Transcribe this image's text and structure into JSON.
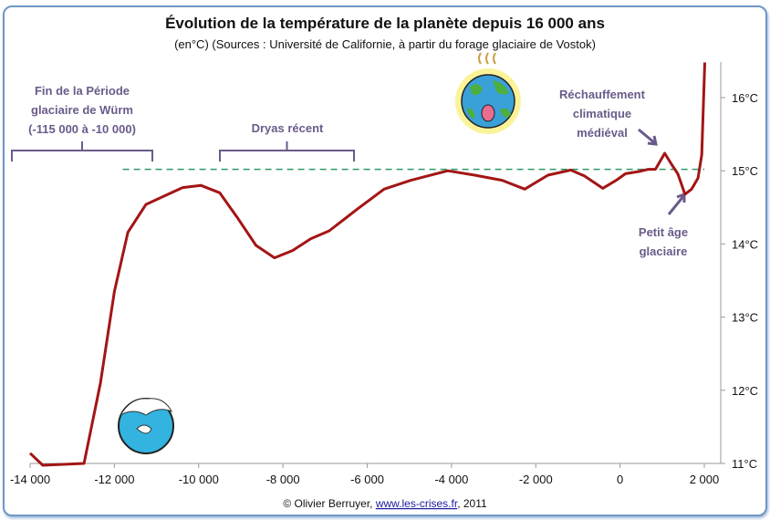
{
  "chart_data": {
    "type": "line",
    "title": "Évolution de la température de la planète depuis 16 000 ans",
    "subtitle": "(en°C) (Sources : Université de Californie, à partir du forage glaciaire de Vostok)",
    "xlabel": "",
    "ylabel": "",
    "xlim": [
      -14000,
      2000
    ],
    "ylim": [
      11,
      16.5
    ],
    "x_ticks": [
      -14000,
      -12000,
      -10000,
      -8000,
      -6000,
      -4000,
      -2000,
      0,
      2000
    ],
    "x_tick_labels": [
      "-14 000",
      "-12 000",
      "-10 000",
      "-8 000",
      "-6 000",
      "-4 000",
      "-2 000",
      "0",
      "2 000"
    ],
    "y_ticks": [
      11,
      12,
      13,
      14,
      15,
      16
    ],
    "y_tick_labels": [
      "11°C",
      "12°C",
      "13°C",
      "14°C",
      "15°C",
      "16°C"
    ],
    "y_axis_side": "right",
    "grid": false,
    "series": [
      {
        "color": "#a31515",
        "x": [
          -14000,
          -13700,
          -12720,
          -12330,
          -12000,
          -11680,
          -11250,
          -10800,
          -10380,
          -9950,
          -9500,
          -9070,
          -8640,
          -8200,
          -7770,
          -7340,
          -6900,
          -6250,
          -5600,
          -4960,
          -4090,
          -3450,
          -2800,
          -2260,
          -1710,
          -1170,
          -850,
          -410,
          -90,
          130,
          450,
          670,
          840,
          1060,
          1220,
          1370,
          1540,
          1700,
          1850,
          1940,
          2011
        ],
        "y": [
          11.14,
          10.95,
          11.0,
          12.1,
          13.35,
          14.16,
          14.54,
          14.66,
          14.77,
          14.8,
          14.7,
          14.35,
          13.98,
          13.81,
          13.91,
          14.07,
          14.18,
          14.47,
          14.75,
          14.87,
          15.0,
          14.94,
          14.87,
          14.75,
          14.94,
          15.01,
          14.93,
          14.76,
          14.87,
          14.96,
          14.99,
          15.02,
          15.02,
          15.24,
          15.09,
          14.96,
          14.68,
          14.75,
          14.9,
          15.22,
          16.48
        ]
      }
    ],
    "reference_line": {
      "y": 15.02,
      "x_from": -11800,
      "x_to": 2000,
      "style": "dashed",
      "color": "#2e9a6a"
    },
    "annotations": [
      {
        "lines": [
          "Fin de la Période",
          "glaciaire de Würm",
          "(-115 000 à -10 000)"
        ],
        "bracket": [
          -14000,
          -11000
        ]
      },
      {
        "lines": [
          "Dryas récent"
        ],
        "bracket": [
          -9600,
          -6400
        ]
      },
      {
        "lines": [
          "Réchauffement",
          "climatique",
          "médiéval"
        ]
      },
      {
        "lines": [
          "Petit âge",
          "glaciaire"
        ]
      }
    ],
    "annotation_color": "#6a5b8a",
    "icons": [
      "hot-earth-icon",
      "frozen-earth-icon"
    ]
  },
  "credit": {
    "prefix": "© Olivier Berruyer, ",
    "link": "www.les-crises.fr",
    "suffix": ",  2011"
  }
}
